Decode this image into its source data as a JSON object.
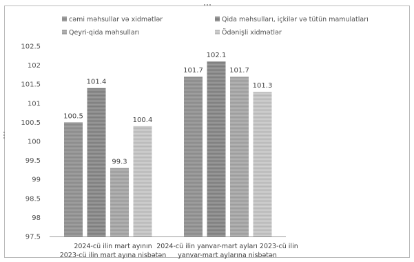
{
  "chart_data": {
    "type": "bar",
    "title": "",
    "xlabel": "",
    "ylabel": "",
    "ylim": [
      97.5,
      102.5
    ],
    "yticks": [
      97.5,
      98,
      98.5,
      99,
      99.5,
      100,
      100.5,
      101,
      101.5,
      102,
      102.5
    ],
    "ytick_labels": [
      "97.5",
      "98",
      "98.5",
      "99",
      "99.5",
      "100",
      "100.5",
      "101",
      "101.5",
      "102",
      "102.5"
    ],
    "grid": false,
    "legend_position": "top",
    "categories": [
      [
        "2024-cü ilin mart ayının",
        "2023-cü ilin mart ayına nisbətən"
      ],
      [
        "2024-cü ilin yanvar-mart ayları 2023-cü ilin",
        "yanvar-mart aylarına nisbətən"
      ]
    ],
    "series": [
      {
        "name": "cəmi məhsullar  və xidmətlər",
        "values": [
          100.5,
          101.7
        ],
        "color": "#9b9b9b"
      },
      {
        "name": "Qida məhsulları, içkilər və tütün mamulatları",
        "values": [
          101.4,
          102.1
        ],
        "color": "#8c8c8c"
      },
      {
        "name": "Qeyri-qida  məhsulları",
        "values": [
          99.3,
          101.7
        ],
        "color": "#a8a8a8"
      },
      {
        "name": "Ödənişli  xidmətlər",
        "values": [
          100.4,
          101.3
        ],
        "color": "#c2c2c2"
      }
    ],
    "data_labels": [
      [
        "100.5",
        "101.7"
      ],
      [
        "101.4",
        "102.1"
      ],
      [
        "99.3",
        "101.7"
      ],
      [
        "100.4",
        "101.3"
      ]
    ]
  }
}
